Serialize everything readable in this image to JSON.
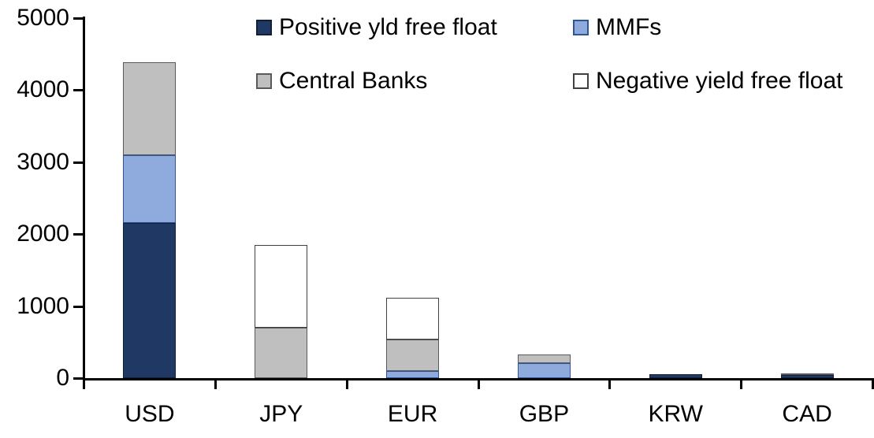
{
  "chart_data": {
    "type": "bar",
    "stacked": true,
    "title": "",
    "xlabel": "",
    "ylabel": "",
    "categories": [
      "USD",
      "JPY",
      "EUR",
      "GBP",
      "KRW",
      "CAD"
    ],
    "series": [
      {
        "name": "Positive yld free float",
        "color": "#1F3864",
        "border": "#121F38",
        "values": [
          2150,
          0,
          0,
          0,
          50,
          40
        ]
      },
      {
        "name": "MMFs",
        "color": "#8FAADC",
        "border": "#2F5597",
        "values": [
          950,
          0,
          100,
          210,
          0,
          0
        ]
      },
      {
        "name": "Central Banks",
        "color": "#BFBFBF",
        "border": "#595959",
        "values": [
          1290,
          700,
          440,
          120,
          0,
          25
        ]
      },
      {
        "name": "Negative yield free float",
        "color": "#FFFFFF",
        "border": "#404040",
        "values": [
          0,
          1150,
          575,
          0,
          0,
          0
        ]
      }
    ],
    "totals": [
      4390,
      1850,
      1115,
      330,
      50,
      65
    ],
    "ylim": [
      0,
      5000
    ],
    "yticks": [
      "0",
      "1000",
      "2000",
      "3000",
      "4000",
      "5000"
    ],
    "grid": false,
    "legend_position": "top",
    "background_color": "#FFFFFF",
    "axis_color": "#000000"
  }
}
